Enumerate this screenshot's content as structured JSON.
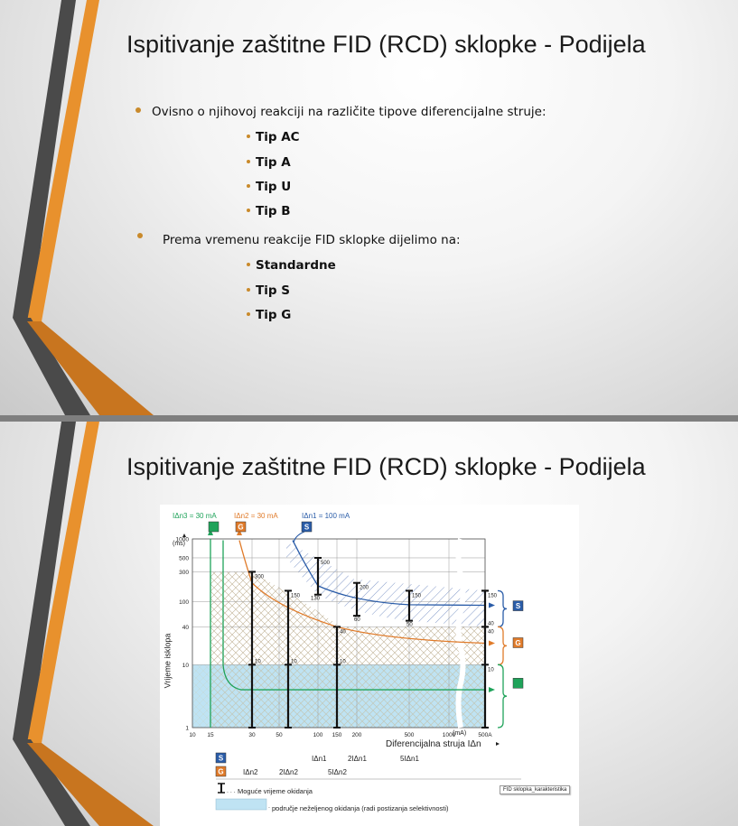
{
  "slide1": {
    "title": "Ispitivanje zaštitne FID (RCD) sklopke - Podijela",
    "bullet1": "Ovisno o njihovoj reakciji na različite tipove diferencijalne struje:",
    "types": [
      "Tip AC",
      "Tip A",
      "Tip U",
      "Tip B"
    ],
    "bullet2": "Prema vremenu reakcije FID sklopke dijelimo na:",
    "timing_types": [
      "Standardne",
      "Tip S",
      "Tip G"
    ]
  },
  "slide2": {
    "title": "Ispitivanje zaštitne FID (RCD) sklopke - Podijela",
    "tooltip": "FID sklopka_karakteristika"
  },
  "colors": {
    "orange": "#e8912d",
    "dark_stripe": "#4a4a4a",
    "green": "#1fa35a",
    "blue": "#2a5ca8",
    "g_orange": "#e07b2a",
    "light_blue": "#bfe3f3"
  },
  "chart_data": {
    "type": "line",
    "xscale": "log",
    "yscale": "log",
    "xlabel": "Diferencijalna struja IΔn",
    "ylabel": "Vrijeme isklopa",
    "y_unit": "(ms)",
    "x_unit": "(mA)",
    "xlim": [
      10,
      500
    ],
    "ylim": [
      1,
      1000
    ],
    "x_ticks": [
      "10",
      "15",
      "30",
      "50",
      "100",
      "150",
      "200",
      "500",
      "1000",
      "500A"
    ],
    "y_ticks": [
      "1",
      "10",
      "40",
      "100",
      "300",
      "500",
      "1000"
    ],
    "top_labels": {
      "n3": "IΔn3 = 30 mA",
      "n2": "IΔn2 = 30 mA",
      "n1": "IΔn1 = 100 mA"
    },
    "bars": [
      {
        "name": "G",
        "x": 30,
        "labels": [
          "300",
          "10"
        ]
      },
      {
        "name": "G",
        "x": 60,
        "labels": [
          "150",
          "10"
        ]
      },
      {
        "name": "G",
        "x": 150,
        "labels": [
          "40",
          "10"
        ]
      },
      {
        "name": "S",
        "x": 100,
        "labels": [
          "500",
          "130"
        ]
      },
      {
        "name": "S",
        "x": 200,
        "labels": [
          "200",
          "60"
        ]
      },
      {
        "name": "S",
        "x": 500,
        "labels": [
          "150",
          "50"
        ]
      },
      {
        "name": "right",
        "x": 1000,
        "labels": [
          "150",
          "40",
          "40",
          "10"
        ]
      }
    ],
    "series": [
      {
        "name": "S",
        "points": [
          [
            60,
            600
          ],
          [
            100,
            200
          ],
          [
            150,
            130
          ],
          [
            200,
            110
          ],
          [
            500,
            95
          ],
          [
            1000,
            90
          ]
        ]
      },
      {
        "name": "G",
        "points": [
          [
            20,
            700
          ],
          [
            30,
            260
          ],
          [
            60,
            90
          ],
          [
            150,
            40
          ],
          [
            500,
            24
          ],
          [
            1000,
            22
          ]
        ]
      },
      {
        "name": "standard",
        "points": [
          [
            15,
            1000
          ],
          [
            18,
            10
          ],
          [
            30,
            6
          ],
          [
            150,
            4
          ],
          [
            1000,
            4
          ]
        ]
      }
    ],
    "bottom_rows": {
      "s_row": [
        "IΔn1",
        "2IΔn1",
        "5IΔn1"
      ],
      "g_row": [
        "IΔn2",
        "2IΔn2",
        "5IΔn2"
      ]
    },
    "legend": {
      "mark1": "Moguće vrijeme okidanja",
      "mark2": "područje neželjenog okidanja (radi postizanja selektivnosti)"
    },
    "badges": {
      "S": "S",
      "G": "G"
    }
  }
}
